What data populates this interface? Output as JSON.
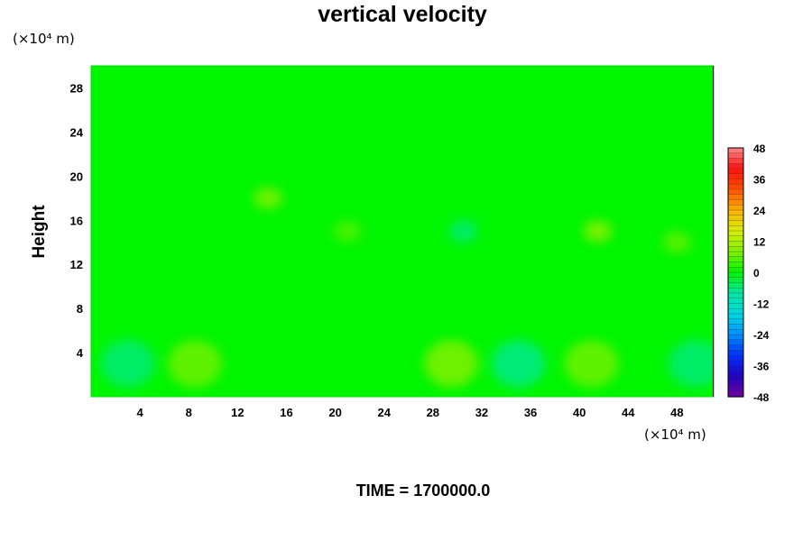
{
  "chart_data": {
    "type": "heatmap",
    "title": "vertical velocity",
    "xlabel": "",
    "ylabel": "Height",
    "x_unit": "(×10⁴ m)",
    "y_unit": "(×10⁴ m)",
    "xlim": [
      0,
      51
    ],
    "ylim": [
      0,
      30
    ],
    "xticks": [
      "4",
      "8",
      "12",
      "16",
      "20",
      "24",
      "28",
      "32",
      "36",
      "40",
      "44",
      "48"
    ],
    "yticks": [
      "4",
      "8",
      "12",
      "16",
      "20",
      "24",
      "28"
    ],
    "colorbar": {
      "min": -48,
      "max": 48,
      "ticks": [
        "48",
        "36",
        "24",
        "12",
        "0",
        "-12",
        "-24",
        "-36",
        "-48"
      ]
    },
    "features": [
      {
        "x": 3,
        "y": 3,
        "v": -6
      },
      {
        "x": 8.5,
        "y": 3,
        "v": 7
      },
      {
        "x": 14.5,
        "y": 18,
        "v": 8
      },
      {
        "x": 21,
        "y": 15,
        "v": 5
      },
      {
        "x": 29.5,
        "y": 3,
        "v": 8
      },
      {
        "x": 35,
        "y": 3,
        "v": -7
      },
      {
        "x": 41,
        "y": 3,
        "v": 7
      },
      {
        "x": 41.5,
        "y": 15,
        "v": 9
      },
      {
        "x": 49.5,
        "y": 3,
        "v": -6
      },
      {
        "x": 30.5,
        "y": 15,
        "v": -6
      },
      {
        "x": 48,
        "y": 14,
        "v": 6
      }
    ],
    "footer": "TIME = 1700000.0"
  }
}
